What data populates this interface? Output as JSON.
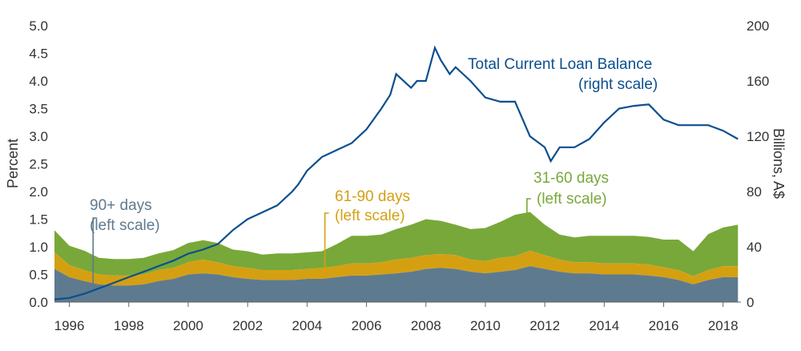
{
  "chart_data": {
    "type": "area",
    "ylabel_left": "Percent",
    "ylabel_right": "Billions, A$",
    "y_left_range": [
      0,
      5
    ],
    "y_right_range": [
      0,
      200
    ],
    "y_left_ticks": [
      "0.0",
      "0.5",
      "1.0",
      "1.5",
      "2.0",
      "2.5",
      "3.0",
      "3.5",
      "4.0",
      "4.5",
      "5.0"
    ],
    "y_right_ticks": [
      "0",
      "40",
      "80",
      "120",
      "160",
      "200"
    ],
    "x_range": [
      1995.5,
      2018.6
    ],
    "x_ticks": [
      {
        "value": 1996,
        "label": "1996"
      },
      {
        "value": 1998,
        "label": "1998"
      },
      {
        "value": 2000,
        "label": "2000"
      },
      {
        "value": 2002,
        "label": "2002"
      },
      {
        "value": 2004,
        "label": "2004"
      },
      {
        "value": 2006,
        "label": "2006"
      },
      {
        "value": 2008,
        "label": "2008"
      },
      {
        "value": 2010,
        "label": "2010"
      },
      {
        "value": 2012,
        "label": "2012"
      },
      {
        "value": 2014,
        "label": "2014"
      },
      {
        "value": 2016,
        "label": "2016"
      },
      {
        "value": 2018,
        "label": "2018"
      }
    ],
    "grid": false,
    "colors": {
      "days_90_plus": "#5e7a8f",
      "days_61_90": "#d4a012",
      "days_31_60": "#78a83a",
      "total_balance": "#0b4f8e"
    },
    "series_stacked_percent": {
      "x": [
        1995.5,
        1996.0,
        1996.5,
        1997.0,
        1997.5,
        1998.0,
        1998.5,
        1999.0,
        1999.5,
        2000.0,
        2000.5,
        2001.0,
        2001.5,
        2002.0,
        2002.5,
        2003.0,
        2003.5,
        2004.0,
        2004.5,
        2005.0,
        2005.5,
        2006.0,
        2006.5,
        2007.0,
        2007.5,
        2008.0,
        2008.5,
        2009.0,
        2009.5,
        2010.0,
        2010.5,
        2011.0,
        2011.5,
        2012.0,
        2012.5,
        2013.0,
        2013.5,
        2014.0,
        2014.5,
        2015.0,
        2015.5,
        2016.0,
        2016.5,
        2017.0,
        2017.5,
        2018.0,
        2018.5
      ],
      "days_90_plus": [
        0.6,
        0.45,
        0.38,
        0.32,
        0.3,
        0.3,
        0.32,
        0.38,
        0.42,
        0.5,
        0.52,
        0.5,
        0.45,
        0.42,
        0.4,
        0.4,
        0.4,
        0.42,
        0.42,
        0.45,
        0.48,
        0.48,
        0.5,
        0.52,
        0.55,
        0.6,
        0.62,
        0.6,
        0.55,
        0.52,
        0.55,
        0.58,
        0.65,
        0.6,
        0.55,
        0.52,
        0.52,
        0.5,
        0.5,
        0.5,
        0.48,
        0.45,
        0.4,
        0.32,
        0.4,
        0.45,
        0.45
      ],
      "days_61_90": [
        0.3,
        0.22,
        0.2,
        0.18,
        0.18,
        0.18,
        0.18,
        0.2,
        0.2,
        0.22,
        0.25,
        0.22,
        0.2,
        0.2,
        0.18,
        0.18,
        0.18,
        0.18,
        0.2,
        0.2,
        0.22,
        0.22,
        0.22,
        0.25,
        0.25,
        0.25,
        0.25,
        0.25,
        0.22,
        0.22,
        0.25,
        0.25,
        0.28,
        0.25,
        0.22,
        0.2,
        0.2,
        0.2,
        0.2,
        0.2,
        0.2,
        0.18,
        0.18,
        0.15,
        0.18,
        0.2,
        0.2
      ],
      "days_31_60": [
        0.4,
        0.35,
        0.35,
        0.3,
        0.3,
        0.3,
        0.3,
        0.3,
        0.32,
        0.35,
        0.35,
        0.35,
        0.3,
        0.3,
        0.28,
        0.3,
        0.3,
        0.3,
        0.3,
        0.4,
        0.5,
        0.5,
        0.5,
        0.55,
        0.6,
        0.65,
        0.6,
        0.55,
        0.55,
        0.6,
        0.65,
        0.75,
        0.7,
        0.55,
        0.45,
        0.45,
        0.48,
        0.5,
        0.5,
        0.5,
        0.5,
        0.5,
        0.55,
        0.45,
        0.65,
        0.7,
        0.75
      ]
    },
    "series_total_balance_billions": {
      "x": [
        1995.5,
        1996.0,
        1996.5,
        1997.0,
        1997.5,
        1998.0,
        1998.5,
        1999.0,
        1999.5,
        2000.0,
        2000.5,
        2001.0,
        2001.5,
        2002.0,
        2002.5,
        2003.0,
        2003.5,
        2003.7,
        2004.0,
        2004.5,
        2005.0,
        2005.5,
        2006.0,
        2006.5,
        2006.8,
        2007.0,
        2007.5,
        2007.7,
        2008.0,
        2008.3,
        2008.5,
        2008.8,
        2009.0,
        2009.5,
        2010.0,
        2010.5,
        2011.0,
        2011.3,
        2011.5,
        2012.0,
        2012.2,
        2012.5,
        2013.0,
        2013.5,
        2014.0,
        2014.5,
        2015.0,
        2015.5,
        2016.0,
        2016.5,
        2017.0,
        2017.5,
        2018.0,
        2018.5
      ],
      "values": [
        2,
        3,
        6,
        10,
        14,
        18,
        22,
        26,
        30,
        35,
        38,
        42,
        52,
        60,
        65,
        70,
        80,
        85,
        95,
        105,
        110,
        115,
        125,
        140,
        150,
        165,
        155,
        160,
        160,
        184,
        175,
        165,
        170,
        160,
        148,
        145,
        145,
        130,
        120,
        112,
        102,
        112,
        112,
        118,
        130,
        140,
        142,
        143,
        132,
        128,
        128,
        128,
        124,
        118
      ]
    },
    "annotations": [
      {
        "text": "Total Current Loan Balance",
        "color": "#0b4f8e"
      },
      {
        "text": "(right scale)",
        "color": "#0b4f8e"
      },
      {
        "text": "90+ days",
        "color": "#5e7a8f"
      },
      {
        "text": "(left scale)",
        "color": "#5e7a8f"
      },
      {
        "text": "61-90 days",
        "color": "#d4a012"
      },
      {
        "text": "(left scale)",
        "color": "#d4a012"
      },
      {
        "text": "31-60 days",
        "color": "#78a83a"
      },
      {
        "text": "(left scale)",
        "color": "#78a83a"
      }
    ],
    "callout_x": {
      "days_90_plus": 1996.8,
      "days_61_90": 2004.6,
      "days_31_60": 2011.4
    }
  }
}
